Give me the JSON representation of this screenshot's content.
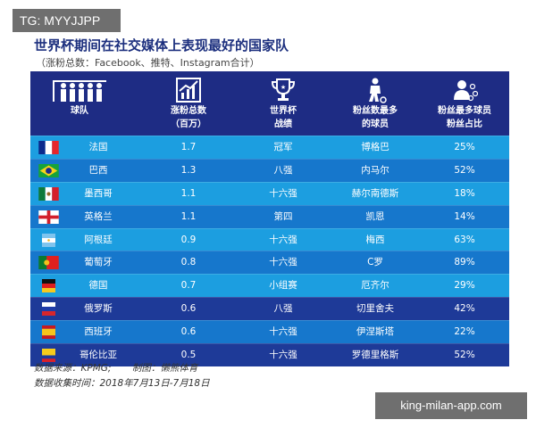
{
  "watermark_top": "TG: MYYJJPP",
  "title": "世界杯期间在社交媒体上表现最好的国家队",
  "subtitle": "（涨粉总数：Facebook、推特、Instagram合计）",
  "headers": [
    {
      "line1": "球队",
      "line2": "",
      "icon": "team-players-icon"
    },
    {
      "line1": "涨粉总数",
      "line2": "（百万）",
      "icon": "growth-chart-icon"
    },
    {
      "line1": "世界杯",
      "line2": "战绩",
      "icon": "trophy-icon"
    },
    {
      "line1": "粉丝数最多",
      "line2": "的球员",
      "icon": "player-icon"
    },
    {
      "line1": "粉丝最多球员",
      "line2": "粉丝占比",
      "icon": "user-share-icon"
    }
  ],
  "rows": [
    {
      "team": "法国",
      "growth": "1.7",
      "result": "冠军",
      "player": "博格巴",
      "share": "25%",
      "flag": "france"
    },
    {
      "team": "巴西",
      "growth": "1.3",
      "result": "八强",
      "player": "内马尔",
      "share": "52%",
      "flag": "brazil"
    },
    {
      "team": "墨西哥",
      "growth": "1.1",
      "result": "十六强",
      "player": "赫尔南德斯",
      "share": "18%",
      "flag": "mexico"
    },
    {
      "team": "英格兰",
      "growth": "1.1",
      "result": "第四",
      "player": "凯恩",
      "share": "14%",
      "flag": "england"
    },
    {
      "team": "阿根廷",
      "growth": "0.9",
      "result": "十六强",
      "player": "梅西",
      "share": "63%",
      "flag": "argentina"
    },
    {
      "team": "葡萄牙",
      "growth": "0.8",
      "result": "十六强",
      "player": "C罗",
      "share": "89%",
      "flag": "portugal"
    },
    {
      "team": "德国",
      "growth": "0.7",
      "result": "小组赛",
      "player": "厄齐尔",
      "share": "29%",
      "flag": "germany"
    },
    {
      "team": "俄罗斯",
      "growth": "0.6",
      "result": "八强",
      "player": "切里舍夫",
      "share": "42%",
      "flag": "russia"
    },
    {
      "team": "西班牙",
      "growth": "0.6",
      "result": "十六强",
      "player": "伊涅斯塔",
      "share": "22%",
      "flag": "spain"
    },
    {
      "team": "哥伦比亚",
      "growth": "0.5",
      "result": "十六强",
      "player": "罗德里格斯",
      "share": "52%",
      "flag": "colombia"
    }
  ],
  "source_line1": "数据来源：KPMG;       制图：懒熊体育",
  "source_line2": "数据收集时间：2018年7月13日-7月18日",
  "watermark_bottom": "king-milan-app.com",
  "colors": {
    "header_bg": "#1e2c84",
    "row_light": "#1c9ee0",
    "row_mid": "#1677cc",
    "row_dark": "#1e3a98"
  }
}
